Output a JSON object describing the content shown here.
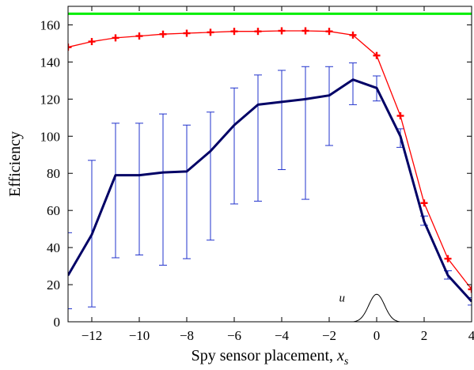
{
  "chart_data": {
    "type": "line",
    "xlabel": "Spy sensor placement, ",
    "xlabel_var": "x",
    "xlabel_sub": "s",
    "ylabel": "Efficiency",
    "xlim": [
      -13,
      4
    ],
    "ylim": [
      0,
      170
    ],
    "xticks": [
      -12,
      -10,
      -8,
      -6,
      -4,
      -2,
      0,
      2,
      4
    ],
    "yticks": [
      0,
      20,
      40,
      60,
      80,
      100,
      120,
      140,
      160
    ],
    "grid": false,
    "legend": "none",
    "reference_line": {
      "y": 166,
      "color": "#00ee00"
    },
    "series": [
      {
        "color": "#ff0000",
        "marker": "plus",
        "x": [
          -13,
          -12,
          -11,
          -10,
          -9,
          -8,
          -7,
          -6,
          -5,
          -4,
          -3,
          -2,
          -1,
          0,
          1,
          2,
          3,
          4
        ],
        "y": [
          148,
          151,
          153,
          154,
          155,
          155.5,
          156,
          156.5,
          156.5,
          156.8,
          156.8,
          156.5,
          154.5,
          143.5,
          111,
          64,
          34,
          17.5
        ]
      },
      {
        "color": "#000066",
        "x": [
          -13,
          -12,
          -11,
          -10,
          -9,
          -8,
          -7,
          -6,
          -5,
          -4,
          -3,
          -2,
          -1,
          0,
          1,
          2,
          3,
          4
        ],
        "y": [
          25,
          47,
          79,
          79,
          80.5,
          81,
          92,
          106,
          117,
          118.5,
          120,
          122,
          130.5,
          126,
          100,
          54,
          25,
          11
        ],
        "error_color": "#2233cc",
        "err_low": [
          7,
          8,
          34.5,
          36,
          30.5,
          34,
          44,
          63.5,
          65,
          82,
          66,
          95,
          117,
          119,
          94,
          52,
          23,
          9
        ],
        "err_high": [
          48,
          87,
          107,
          107,
          112,
          106,
          113,
          126,
          133,
          135.5,
          137.5,
          137.5,
          139.5,
          132.5,
          104,
          57,
          27.5,
          13
        ]
      }
    ],
    "bump": {
      "label": "u",
      "center": 0,
      "halfwidth": 1,
      "height": 15
    }
  }
}
